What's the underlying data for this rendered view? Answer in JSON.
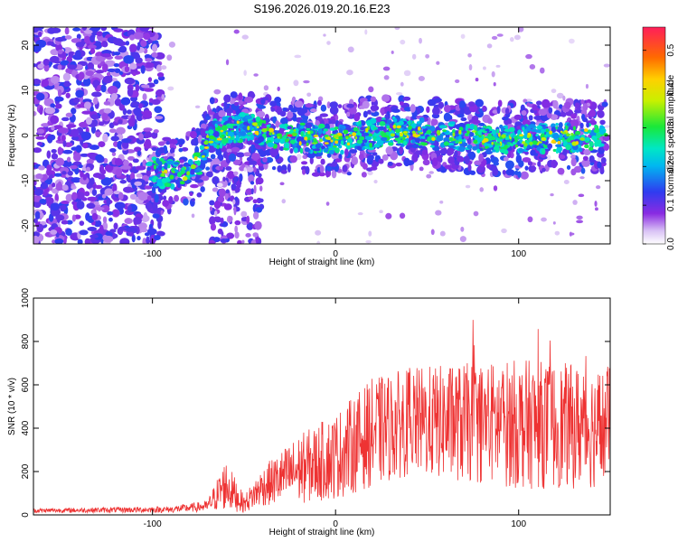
{
  "title": "S196.2026.019.20.16.E23",
  "chart_data": [
    {
      "type": "heatmap",
      "xlabel": "Height of straight line (km)",
      "ylabel": "Frequency (Hz)",
      "xlim": [
        -165,
        150
      ],
      "ylim": [
        -24,
        24
      ],
      "xticks": [
        -100,
        0,
        100
      ],
      "yticks": [
        -20,
        -10,
        0,
        10,
        20
      ],
      "colorbar": {
        "label": "Normalized spectral amplitude",
        "range": [
          0,
          0.56
        ],
        "ticks": [
          "0.0",
          "0.1",
          "0.2",
          "0.3",
          "0.4",
          "0.5"
        ],
        "tick_values": [
          0.0,
          0.1,
          0.2,
          0.3,
          0.4,
          0.5
        ]
      },
      "ridge": [
        {
          "x": -100,
          "freq": -8
        },
        {
          "x": -85,
          "freq": -9
        },
        {
          "x": -75,
          "freq": -6
        },
        {
          "x": -68,
          "freq": 0
        },
        {
          "x": -50,
          "freq": 2
        },
        {
          "x": -30,
          "freq": 0
        },
        {
          "x": 0,
          "freq": -1
        },
        {
          "x": 30,
          "freq": 1
        },
        {
          "x": 60,
          "freq": 0
        },
        {
          "x": 100,
          "freq": -1
        },
        {
          "x": 145,
          "freq": 0
        }
      ],
      "peak_amplitude": 0.56
    },
    {
      "type": "line",
      "xlabel": "Height of straight line (km)",
      "ylabel": "SNR (10 * v/v)",
      "xlim": [
        -165,
        150
      ],
      "ylim": [
        0,
        1000
      ],
      "xticks": [
        -100,
        0,
        100
      ],
      "yticks": [
        0,
        200,
        400,
        600,
        800,
        1000
      ],
      "series_color": "#ee3333",
      "envelope": [
        {
          "x": -165,
          "mean": 20,
          "spread": 10
        },
        {
          "x": -90,
          "mean": 25,
          "spread": 15
        },
        {
          "x": -70,
          "mean": 40,
          "spread": 25
        },
        {
          "x": -60,
          "mean": 140,
          "spread": 120
        },
        {
          "x": -50,
          "mean": 50,
          "spread": 40
        },
        {
          "x": -40,
          "mean": 130,
          "spread": 90
        },
        {
          "x": -20,
          "mean": 210,
          "spread": 160
        },
        {
          "x": 0,
          "mean": 270,
          "spread": 200
        },
        {
          "x": 20,
          "mean": 380,
          "spread": 250
        },
        {
          "x": 40,
          "mean": 430,
          "spread": 250
        },
        {
          "x": 100,
          "mean": 420,
          "spread": 300
        },
        {
          "x": 150,
          "mean": 400,
          "spread": 280
        }
      ]
    }
  ]
}
